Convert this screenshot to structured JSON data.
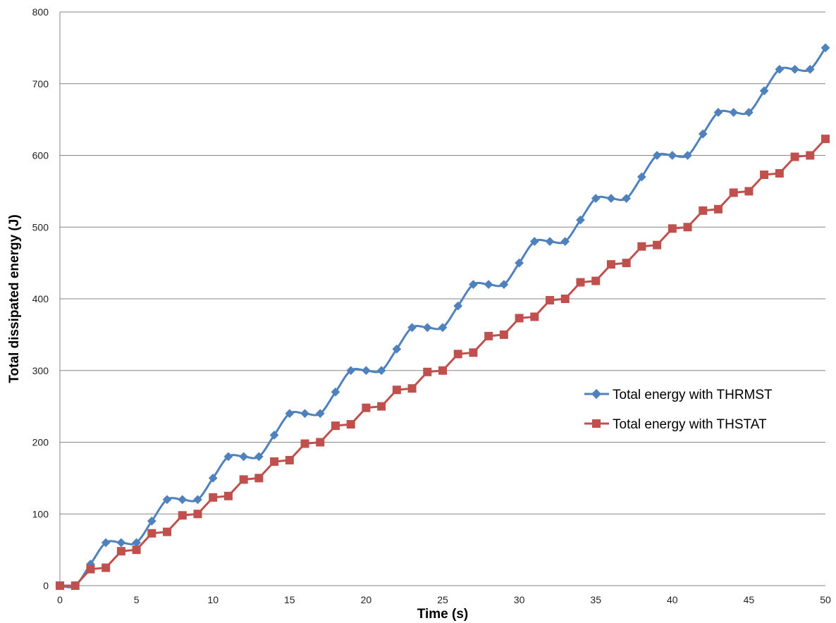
{
  "chart_data": {
    "type": "line",
    "title": "",
    "xlabel": "Time (s)",
    "ylabel": "Total dissipated energy (J)",
    "xlim": [
      0,
      50
    ],
    "ylim": [
      0,
      800
    ],
    "x_ticks": [
      0,
      5,
      10,
      15,
      20,
      25,
      30,
      35,
      40,
      45,
      50
    ],
    "y_ticks": [
      0,
      100,
      200,
      300,
      400,
      500,
      600,
      700,
      800
    ],
    "grid": "horizontal",
    "legend_position": "right",
    "x": [
      0,
      1,
      2,
      3,
      4,
      5,
      6,
      7,
      8,
      9,
      10,
      11,
      12,
      13,
      14,
      15,
      16,
      17,
      18,
      19,
      20,
      21,
      22,
      23,
      24,
      25,
      26,
      27,
      28,
      29,
      30,
      31,
      32,
      33,
      34,
      35,
      36,
      37,
      38,
      39,
      40,
      41,
      42,
      43,
      44,
      45,
      46,
      47,
      48,
      49,
      50
    ],
    "series": [
      {
        "name": "Total energy with THRMST",
        "color": "#4f81bd",
        "marker": "diamond",
        "smooth": true,
        "values": [
          0,
          0,
          30,
          60,
          60,
          60,
          90,
          120,
          120,
          120,
          150,
          180,
          180,
          180,
          210,
          240,
          240,
          240,
          270,
          300,
          300,
          300,
          330,
          360,
          360,
          360,
          390,
          420,
          420,
          420,
          450,
          480,
          480,
          480,
          510,
          540,
          540,
          540,
          570,
          600,
          600,
          600,
          630,
          660,
          660,
          660,
          690,
          720,
          720,
          720,
          750
        ]
      },
      {
        "name": "Total energy with THSTAT",
        "color": "#c0504d",
        "marker": "square",
        "smooth": false,
        "values": [
          0,
          0,
          23,
          25,
          48,
          50,
          73,
          75,
          98,
          100,
          123,
          125,
          148,
          150,
          173,
          175,
          198,
          200,
          223,
          225,
          248,
          250,
          273,
          275,
          298,
          300,
          323,
          325,
          348,
          350,
          373,
          375,
          398,
          400,
          423,
          425,
          448,
          450,
          473,
          475,
          498,
          500,
          523,
          525,
          548,
          550,
          573,
          575,
          598,
          600,
          623
        ]
      }
    ]
  }
}
